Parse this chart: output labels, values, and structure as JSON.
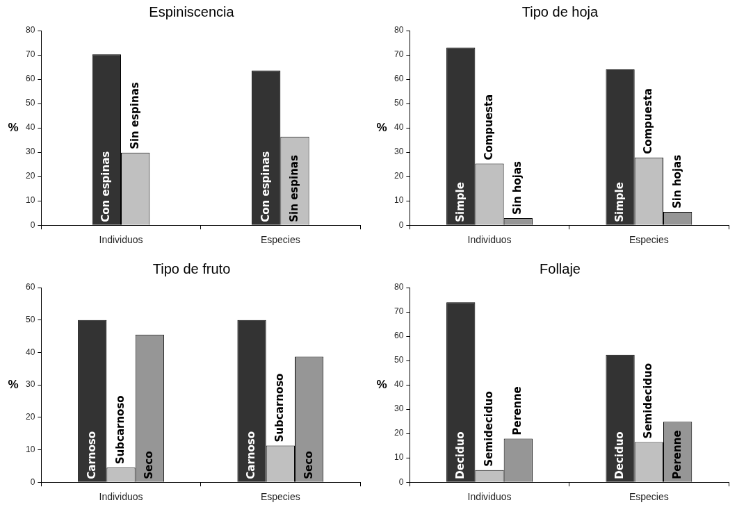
{
  "chart_data": [
    {
      "type": "bar",
      "title": "Espiniscencia",
      "ylabel": "%",
      "categories": [
        "Individuos",
        "Especies"
      ],
      "ylim": [
        0,
        80
      ],
      "yticks": [
        0,
        10,
        20,
        30,
        40,
        50,
        60,
        70,
        80
      ],
      "grid": false,
      "legend": false,
      "series": [
        {
          "name": "Con espinas",
          "color": "#333333",
          "values": [
            70.2,
            63.6
          ]
        },
        {
          "name": "Sin espinas",
          "color": "#c0c0c0",
          "values": [
            29.8,
            36.4
          ]
        }
      ]
    },
    {
      "type": "bar",
      "title": "Tipo de hoja",
      "ylabel": "%",
      "categories": [
        "Individuos",
        "Especies"
      ],
      "ylim": [
        0,
        80
      ],
      "yticks": [
        0,
        10,
        20,
        30,
        40,
        50,
        60,
        70,
        80
      ],
      "grid": false,
      "legend": false,
      "series": [
        {
          "name": "Simple",
          "color": "#333333",
          "values": [
            73,
            64
          ]
        },
        {
          "name": "Compuesta",
          "color": "#c0c0c0",
          "values": [
            25.3,
            27.8
          ]
        },
        {
          "name": "Sin hojas",
          "color": "#969696",
          "values": [
            2.9,
            5.5
          ]
        }
      ]
    },
    {
      "type": "bar",
      "title": "Tipo de fruto",
      "ylabel": "%",
      "categories": [
        "Individuos",
        "Especies"
      ],
      "ylim": [
        0,
        60
      ],
      "yticks": [
        0,
        10,
        20,
        30,
        40,
        50,
        60
      ],
      "grid": false,
      "legend": false,
      "series": [
        {
          "name": "Carnoso",
          "color": "#333333",
          "values": [
            50,
            50
          ]
        },
        {
          "name": "Subcarnoso",
          "color": "#c0c0c0",
          "values": [
            4.5,
            11.3
          ]
        },
        {
          "name": "Seco",
          "color": "#969696",
          "values": [
            45.5,
            38.7
          ]
        }
      ]
    },
    {
      "type": "bar",
      "title": "Follaje",
      "ylabel": "%",
      "categories": [
        "Individuos",
        "Especies"
      ],
      "ylim": [
        0,
        80
      ],
      "yticks": [
        0,
        10,
        20,
        30,
        40,
        50,
        60,
        70,
        80
      ],
      "grid": false,
      "legend": false,
      "series": [
        {
          "name": "Deciduo",
          "color": "#333333",
          "values": [
            73.9,
            52.4
          ]
        },
        {
          "name": "Semideciduo",
          "color": "#c0c0c0",
          "values": [
            5,
            16.5
          ]
        },
        {
          "name": "Perenne",
          "color": "#969696",
          "values": [
            17.9,
            24.8
          ]
        }
      ]
    }
  ]
}
